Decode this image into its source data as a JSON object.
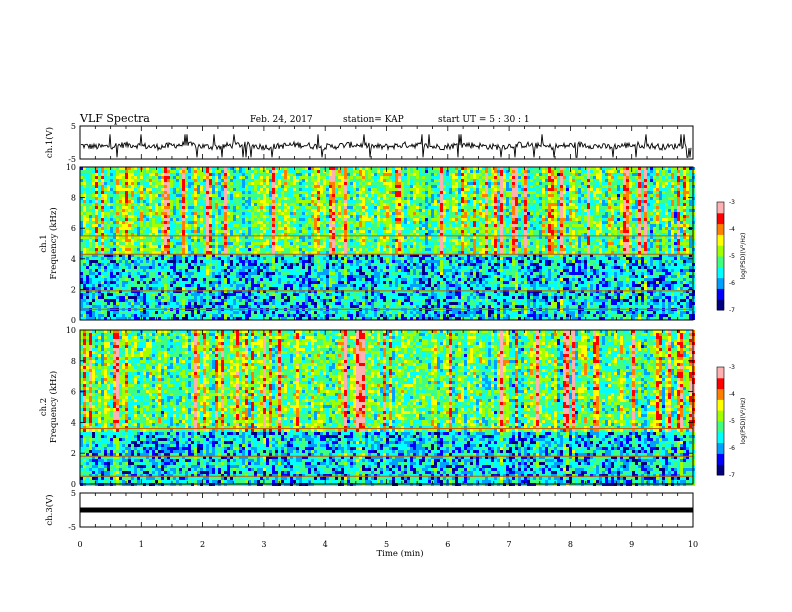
{
  "header": {
    "title": "VLF Spectra",
    "date": "Feb. 24, 2017",
    "station": "station= KAP",
    "start": "start  UT =   5 : 30 : 1"
  },
  "colors": {
    "colormap": [
      "#000080",
      "#0000ff",
      "#00a0ff",
      "#00ffff",
      "#40ff80",
      "#a0ff00",
      "#ffff00",
      "#ff8000",
      "#ff0000",
      "#ffb0b0"
    ],
    "waveform": "#000000"
  },
  "chart_data": [
    {
      "type": "line",
      "ylabel": "ch.1(V)",
      "ylim": [
        -5,
        5
      ],
      "yticks": [
        "5",
        "-5"
      ],
      "xlim": [
        0,
        10
      ],
      "series": [
        {
          "baseline": -1,
          "amplitude": 1.2
        }
      ]
    },
    {
      "type": "heatmap",
      "ylabel_top": "ch.1",
      "ylabel": "Frequency (kHz)",
      "ylim": [
        0,
        10
      ],
      "yticks": [
        "0",
        "2",
        "4",
        "6",
        "8",
        "10"
      ],
      "xlim": [
        0,
        10
      ],
      "colorbar": {
        "label": "log(PSD)(V²/Hz)",
        "ticks": [
          "-3",
          "-4",
          "-5",
          "-6",
          "-7"
        ],
        "range": [
          -7,
          -3
        ]
      },
      "lines_khz": [
        5.5,
        4.3,
        1.9,
        0.7
      ],
      "banded_low_khz": 4.5
    },
    {
      "type": "heatmap",
      "ylabel_top": "ch.2",
      "ylabel": "Frequency (kHz)",
      "ylim": [
        0,
        10
      ],
      "yticks": [
        "0",
        "2",
        "4",
        "6",
        "8",
        "10"
      ],
      "xlim": [
        0,
        10
      ],
      "colorbar": {
        "label": "log(PSD)(V²/Hz)",
        "ticks": [
          "-3",
          "-4",
          "-5",
          "-6",
          "-7"
        ],
        "range": [
          -7,
          -3
        ]
      },
      "lines_khz": [
        3.6,
        1.8,
        0.5
      ],
      "banded_low_khz": 3.5
    },
    {
      "type": "line",
      "ylabel": "ch.3(V)",
      "ylim": [
        -5,
        5
      ],
      "yticks": [
        "5",
        "-5"
      ],
      "xlim": [
        0,
        10
      ],
      "series": [
        {
          "baseline": 0,
          "amplitude": 0
        }
      ]
    }
  ],
  "xaxis": {
    "label": "Time (min)",
    "ticks": [
      "0",
      "1",
      "2",
      "3",
      "4",
      "5",
      "6",
      "7",
      "8",
      "9",
      "10"
    ]
  }
}
